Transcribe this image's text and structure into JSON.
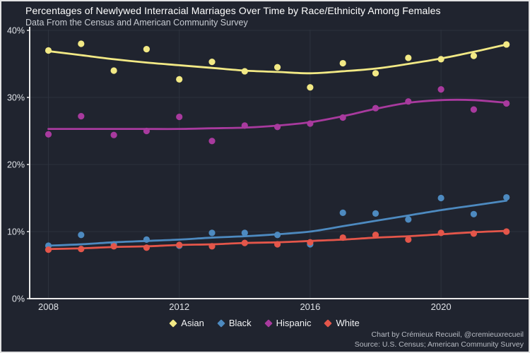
{
  "header": {
    "title": "Percentages of Newlywed Interracial Marriages Over Time by Race/Ethnicity Among Females",
    "subtitle": "Data From the Census and American Community Survey"
  },
  "chart_data": {
    "type": "scatter",
    "title": "Percentages of Newlywed Interracial Marriages Over Time by Race/Ethnicity Among Females",
    "subtitle": "Data From the Census and American Community Survey",
    "x": [
      2008,
      2009,
      2010,
      2011,
      2012,
      2013,
      2014,
      2015,
      2016,
      2017,
      2018,
      2019,
      2020,
      2021,
      2022
    ],
    "xlabel": "",
    "ylabel": "",
    "ylim": [
      0,
      40
    ],
    "xlim": [
      2007.5,
      2022.7
    ],
    "grid": true,
    "x_gridlines": [
      2008,
      2012,
      2016,
      2020
    ],
    "y_gridlines": [
      10,
      20,
      30,
      40
    ],
    "x_tick_labels": [
      "2008",
      "2012",
      "2016",
      "2020"
    ],
    "y_ticks": [
      {
        "value": 0,
        "label": "0%"
      },
      {
        "value": 10,
        "label": "10%"
      },
      {
        "value": 20,
        "label": "20%"
      },
      {
        "value": 30,
        "label": "30%"
      },
      {
        "value": 40,
        "label": "40%"
      }
    ],
    "legend_position": "bottom-center",
    "series": [
      {
        "name": "Asian",
        "color": "#f2e985",
        "values": [
          37.0,
          38.0,
          34.0,
          37.2,
          32.7,
          35.3,
          33.9,
          34.5,
          31.5,
          35.1,
          33.6,
          35.9,
          35.7,
          36.2,
          37.9
        ],
        "trend": [
          36.9,
          36.3,
          35.7,
          35.2,
          34.8,
          34.4,
          34.0,
          33.8,
          33.6,
          33.9,
          34.3,
          35.0,
          35.8,
          36.8,
          37.9
        ]
      },
      {
        "name": "Black",
        "color": "#4d8ac0",
        "values": [
          7.9,
          9.5,
          8.1,
          8.8,
          7.9,
          9.8,
          9.8,
          9.5,
          8.1,
          12.8,
          12.7,
          11.8,
          15.0,
          12.6,
          15.1
        ],
        "trend": [
          7.9,
          8.1,
          8.4,
          8.6,
          8.8,
          9.1,
          9.3,
          9.6,
          10.0,
          10.8,
          11.6,
          12.4,
          13.2,
          13.9,
          14.6
        ]
      },
      {
        "name": "Hispanic",
        "color": "#a83a9e",
        "values": [
          24.5,
          27.2,
          24.4,
          25.0,
          27.1,
          23.5,
          25.8,
          25.6,
          26.1,
          27.0,
          28.4,
          29.4,
          31.2,
          28.2,
          29.1
        ],
        "trend": [
          25.3,
          25.3,
          25.3,
          25.3,
          25.3,
          25.4,
          25.5,
          25.8,
          26.3,
          27.2,
          28.3,
          29.2,
          29.6,
          29.6,
          29.2
        ]
      },
      {
        "name": "White",
        "color": "#e4564a",
        "values": [
          7.3,
          7.4,
          7.8,
          7.6,
          8.0,
          7.8,
          8.3,
          8.1,
          8.4,
          9.1,
          9.5,
          8.8,
          9.8,
          9.7,
          10.0
        ],
        "trend": [
          7.4,
          7.5,
          7.7,
          7.8,
          8.0,
          8.1,
          8.3,
          8.4,
          8.6,
          8.8,
          9.1,
          9.3,
          9.6,
          9.9,
          10.1
        ]
      }
    ]
  },
  "colors": {
    "background": "#20242f",
    "border": "#e3e3e3",
    "axis": "#e9e9e9",
    "gridline": "#2d323e",
    "tick_text": "#dfe2e7",
    "title_text": "#ffffff",
    "subtitle_text": "#c7cbd2",
    "caption_text": "#b8bcc4"
  },
  "caption": {
    "line1": "Chart by Crémieux Recueil, @cremieuxrecueil",
    "line2": "Source: U.S. Census; American Community Survey"
  }
}
